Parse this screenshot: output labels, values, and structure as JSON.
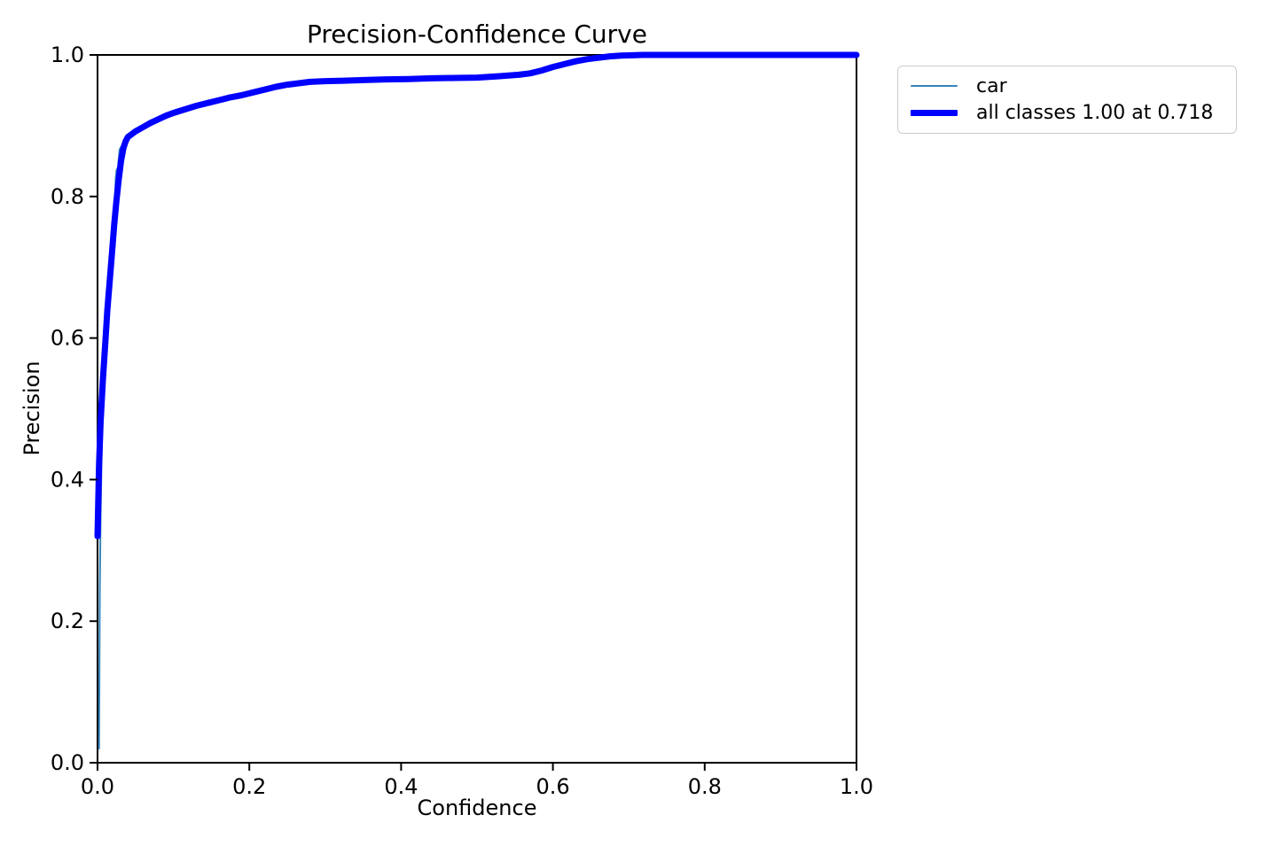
{
  "figure": {
    "title": "Precision-Confidence Curve",
    "xlabel": "Confidence",
    "ylabel": "Precision"
  },
  "chart_data": {
    "type": "line",
    "title": "Precision-Confidence Curve",
    "xlabel": "Confidence",
    "ylabel": "Precision",
    "xlim": [
      0.0,
      1.0
    ],
    "ylim": [
      0.0,
      1.0
    ],
    "grid": false,
    "legend_position": "outside upper right",
    "axis_color": "#000000",
    "xticks": {
      "values": [
        0.0,
        0.2,
        0.4,
        0.6,
        0.8,
        1.0
      ],
      "labels": [
        "0.0",
        "0.2",
        "0.4",
        "0.6",
        "0.8",
        "1.0"
      ]
    },
    "yticks": {
      "values": [
        0.0,
        0.2,
        0.4,
        0.6,
        0.8,
        1.0
      ],
      "labels": [
        "0.0",
        "0.2",
        "0.4",
        "0.6",
        "0.8",
        "1.0"
      ]
    },
    "series": [
      {
        "name": "car",
        "legend_label": "car",
        "color": "#3584bb",
        "linewidth": 2,
        "points": [
          [
            0.002,
            0.02
          ],
          [
            0.0025,
            0.12
          ],
          [
            0.003,
            0.25
          ],
          [
            0.004,
            0.34
          ],
          [
            0.005,
            0.41
          ],
          [
            0.006,
            0.46
          ],
          [
            0.008,
            0.52
          ],
          [
            0.01,
            0.57
          ],
          [
            0.012,
            0.61
          ],
          [
            0.014,
            0.65
          ],
          [
            0.016,
            0.685
          ],
          [
            0.017,
            0.705
          ],
          [
            0.018,
            0.718
          ],
          [
            0.02,
            0.722
          ],
          [
            0.021,
            0.74
          ],
          [
            0.022,
            0.77
          ],
          [
            0.023,
            0.8
          ],
          [
            0.024,
            0.825
          ],
          [
            0.025,
            0.837
          ],
          [
            0.027,
            0.841
          ],
          [
            0.028,
            0.855
          ],
          [
            0.029,
            0.866
          ],
          [
            0.031,
            0.87
          ],
          [
            0.033,
            0.873
          ],
          [
            0.035,
            0.877
          ],
          [
            0.038,
            0.883
          ],
          [
            0.042,
            0.888
          ],
          [
            0.046,
            0.892
          ],
          [
            0.05,
            0.895
          ],
          [
            0.055,
            0.898
          ],
          [
            0.06,
            0.901
          ],
          [
            0.07,
            0.907
          ],
          [
            0.085,
            0.913
          ],
          [
            0.1,
            0.92
          ],
          [
            0.12,
            0.926
          ],
          [
            0.14,
            0.932
          ],
          [
            0.16,
            0.938
          ],
          [
            0.18,
            0.943
          ],
          [
            0.2,
            0.948
          ],
          [
            0.22,
            0.952
          ],
          [
            0.24,
            0.957
          ],
          [
            0.26,
            0.96
          ],
          [
            0.28,
            0.963
          ],
          [
            0.3,
            0.9645
          ],
          [
            0.35,
            0.966
          ],
          [
            0.4,
            0.967
          ],
          [
            0.45,
            0.9685
          ],
          [
            0.5,
            0.97
          ],
          [
            0.53,
            0.971
          ],
          [
            0.56,
            0.973
          ],
          [
            0.575,
            0.975
          ],
          [
            0.59,
            0.978
          ],
          [
            0.605,
            0.982
          ],
          [
            0.62,
            0.986
          ],
          [
            0.635,
            0.99
          ],
          [
            0.65,
            0.9935
          ],
          [
            0.665,
            0.996
          ],
          [
            0.68,
            0.998
          ],
          [
            0.7,
            0.9993
          ],
          [
            0.718,
            1.0
          ],
          [
            0.75,
            1.0
          ],
          [
            0.85,
            1.0
          ],
          [
            1.0,
            1.0
          ]
        ]
      },
      {
        "name": "all classes",
        "legend_label": "all classes 1.00 at 0.718",
        "color": "#0000ff",
        "linewidth": 7,
        "points": [
          [
            0.0,
            0.32
          ],
          [
            0.002,
            0.42
          ],
          [
            0.004,
            0.48
          ],
          [
            0.007,
            0.54
          ],
          [
            0.01,
            0.59
          ],
          [
            0.013,
            0.64
          ],
          [
            0.016,
            0.68
          ],
          [
            0.019,
            0.72
          ],
          [
            0.022,
            0.76
          ],
          [
            0.025,
            0.795
          ],
          [
            0.028,
            0.825
          ],
          [
            0.031,
            0.85
          ],
          [
            0.034,
            0.868
          ],
          [
            0.037,
            0.878
          ],
          [
            0.04,
            0.884
          ],
          [
            0.045,
            0.888
          ],
          [
            0.05,
            0.892
          ],
          [
            0.06,
            0.898
          ],
          [
            0.07,
            0.904
          ],
          [
            0.08,
            0.909
          ],
          [
            0.09,
            0.914
          ],
          [
            0.1,
            0.918
          ],
          [
            0.115,
            0.923
          ],
          [
            0.13,
            0.928
          ],
          [
            0.145,
            0.932
          ],
          [
            0.16,
            0.936
          ],
          [
            0.175,
            0.94
          ],
          [
            0.19,
            0.943
          ],
          [
            0.205,
            0.947
          ],
          [
            0.22,
            0.951
          ],
          [
            0.235,
            0.955
          ],
          [
            0.25,
            0.958
          ],
          [
            0.265,
            0.96
          ],
          [
            0.28,
            0.962
          ],
          [
            0.3,
            0.963
          ],
          [
            0.32,
            0.9635
          ],
          [
            0.35,
            0.9645
          ],
          [
            0.38,
            0.9655
          ],
          [
            0.41,
            0.966
          ],
          [
            0.44,
            0.967
          ],
          [
            0.47,
            0.9675
          ],
          [
            0.5,
            0.968
          ],
          [
            0.53,
            0.97
          ],
          [
            0.555,
            0.972
          ],
          [
            0.57,
            0.974
          ],
          [
            0.585,
            0.978
          ],
          [
            0.6,
            0.983
          ],
          [
            0.615,
            0.987
          ],
          [
            0.63,
            0.991
          ],
          [
            0.645,
            0.994
          ],
          [
            0.66,
            0.996
          ],
          [
            0.675,
            0.998
          ],
          [
            0.69,
            0.999
          ],
          [
            0.705,
            0.9995
          ],
          [
            0.718,
            1.0
          ],
          [
            0.75,
            1.0
          ],
          [
            0.8,
            1.0
          ],
          [
            0.9,
            1.0
          ],
          [
            1.0,
            1.0
          ]
        ]
      }
    ]
  }
}
